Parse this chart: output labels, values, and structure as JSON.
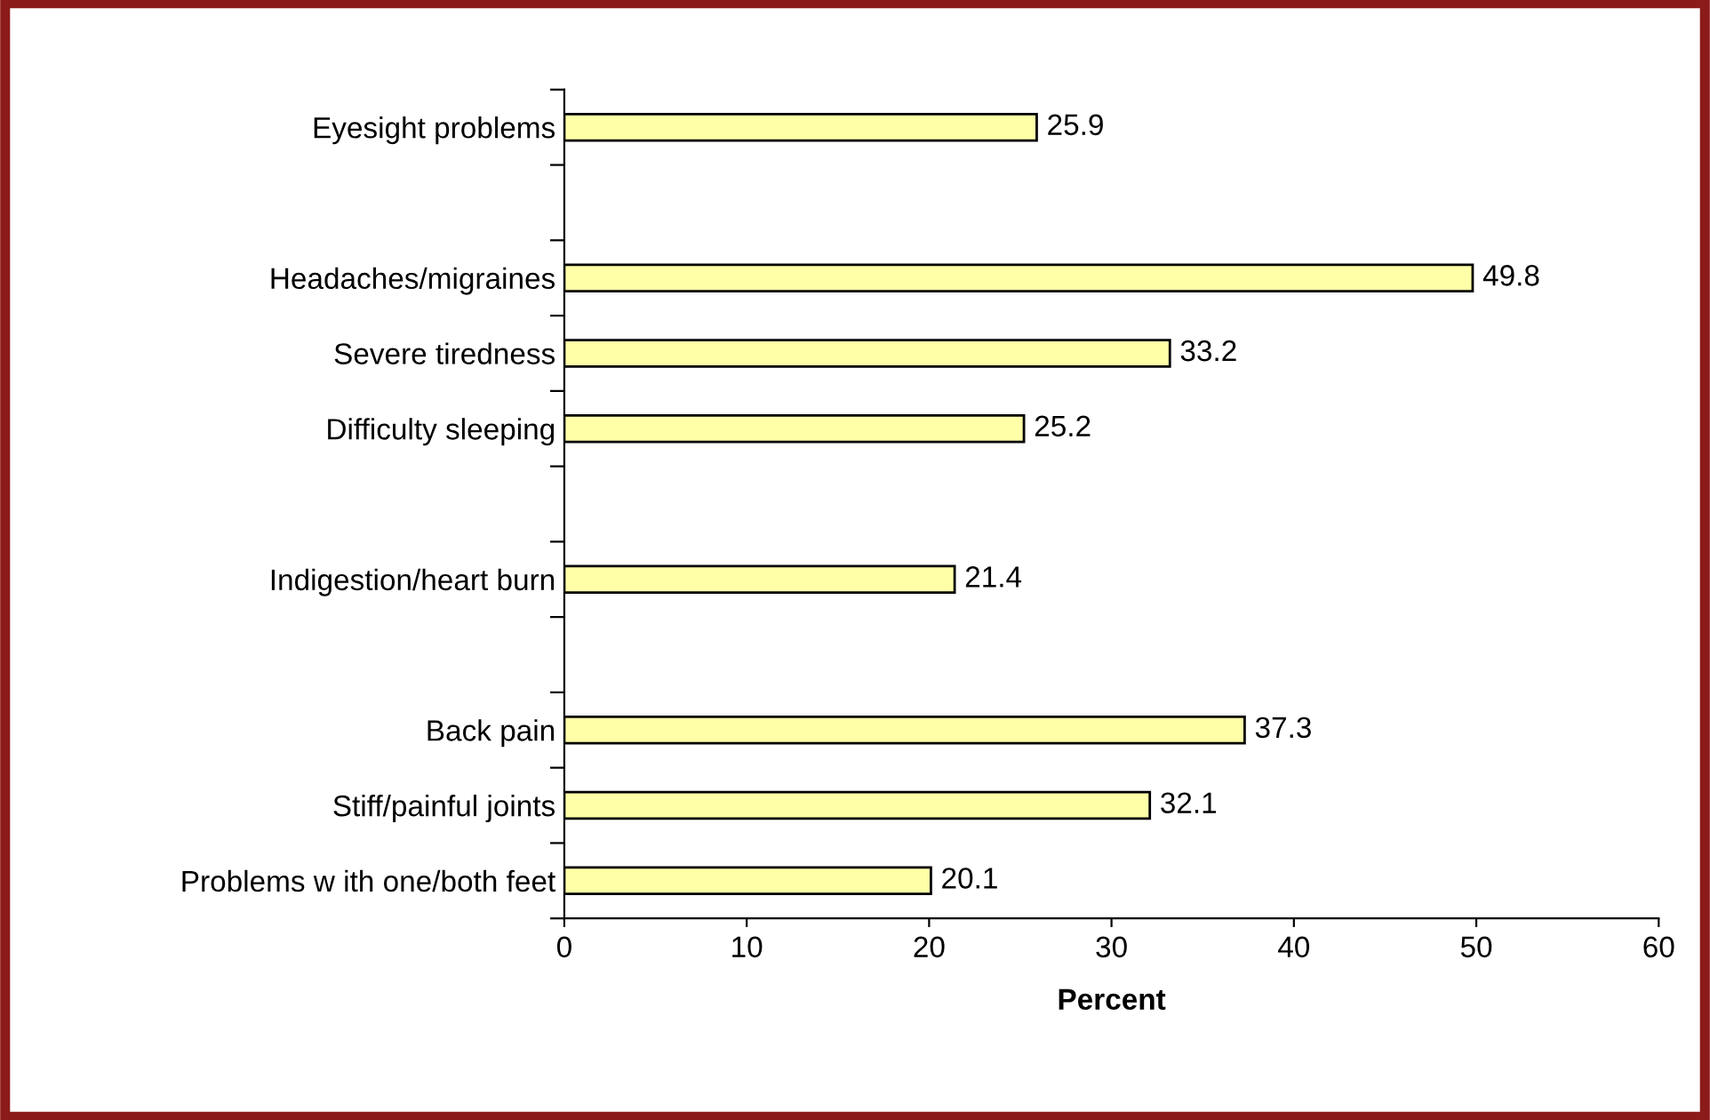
{
  "chart_data": {
    "type": "bar",
    "orientation": "horizontal",
    "categories": [
      "Eyesight problems",
      null,
      "Headaches/migraines",
      "Severe tiredness",
      "Difficulty sleeping",
      null,
      "Indigestion/heart burn",
      null,
      "Back pain",
      "Stiff/painful joints",
      "Problems w ith one/both feet"
    ],
    "values": [
      25.9,
      null,
      49.8,
      33.2,
      25.2,
      null,
      21.4,
      null,
      37.3,
      32.1,
      20.1
    ],
    "color": "#ffffa8",
    "data_labels": true,
    "xlim": [
      0,
      60
    ],
    "xticks": [
      0,
      10,
      20,
      30,
      40,
      50,
      60
    ],
    "xlabel": "Percent",
    "grid": false,
    "legend": false
  }
}
